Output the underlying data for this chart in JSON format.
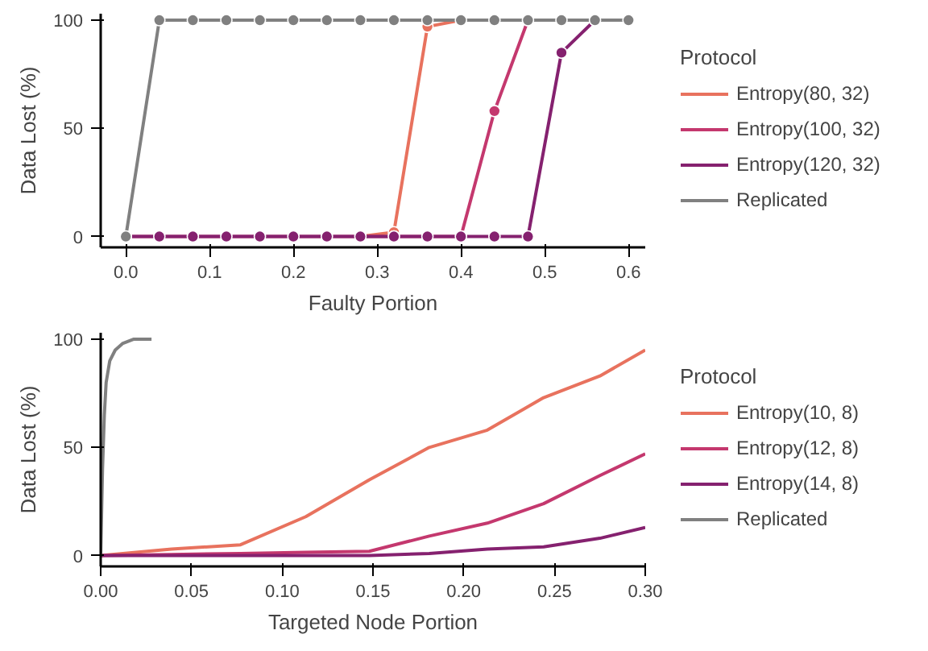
{
  "chart_data": [
    {
      "type": "line",
      "xlabel": "Faulty Portion",
      "ylabel": "Data Lost (%)",
      "legend_title": "Protocol",
      "legend": "right",
      "marker": "circle",
      "grid": false,
      "x": [
        0,
        0.04,
        0.08,
        0.12,
        0.16,
        0.2,
        0.24,
        0.28,
        0.32,
        0.36,
        0.4,
        0.44,
        0.48,
        0.52,
        0.56,
        0.6
      ],
      "xlim": [
        -0.03,
        0.62
      ],
      "xticks": [
        {
          "value": 0,
          "label": "0.0"
        },
        0.1,
        0.2,
        0.3,
        0.4,
        0.5,
        0.6
      ],
      "ylim": [
        -5,
        103
      ],
      "yticks": [
        0,
        50,
        100
      ],
      "series": [
        {
          "name": "Entropy(80, 32)",
          "color": "#e8725e",
          "values": [
            null,
            null,
            null,
            null,
            null,
            null,
            null,
            0,
            2,
            97,
            100,
            null,
            null,
            null,
            null,
            null
          ]
        },
        {
          "name": "Entropy(100, 32)",
          "color": "#c4386e",
          "values": [
            0,
            0,
            0,
            0,
            0,
            0,
            0,
            0,
            0,
            0,
            0,
            58,
            100,
            100,
            null,
            null
          ]
        },
        {
          "name": "Entropy(120, 32)",
          "color": "#85216f",
          "values": [
            0,
            0,
            0,
            0,
            0,
            0,
            0,
            0,
            0,
            0,
            0,
            0,
            0,
            85,
            100,
            100
          ]
        },
        {
          "name": "Replicated",
          "color": "#808080",
          "values": [
            0,
            100,
            100,
            100,
            100,
            100,
            100,
            100,
            100,
            100,
            100,
            100,
            100,
            100,
            100,
            100
          ]
        }
      ]
    },
    {
      "type": "line",
      "xlabel": "Targeted Node Portion",
      "ylabel": "Data Lost (%)",
      "legend_title": "Protocol",
      "legend": "right",
      "grid": false,
      "xlim": [
        0,
        0.3
      ],
      "xticks": [
        {
          "value": 0,
          "label": "0.00"
        },
        0.05,
        {
          "value": 0.1,
          "label": "0.10"
        },
        0.15,
        {
          "value": 0.2,
          "label": "0.20"
        },
        0.25,
        {
          "value": 0.3,
          "label": "0.30"
        }
      ],
      "ylim": [
        -5,
        103
      ],
      "yticks": [
        0,
        50,
        100
      ],
      "series": [
        {
          "name": "Entropy(10, 8)",
          "color": "#e8725e",
          "x": [
            0,
            0.039,
            0.077,
            0.113,
            0.148,
            0.181,
            0.213,
            0.244,
            0.275,
            0.3
          ],
          "values": [
            0,
            3,
            5,
            18,
            35,
            50,
            58,
            73,
            83,
            95
          ]
        },
        {
          "name": "Entropy(12, 8)",
          "color": "#c4386e",
          "x": [
            0,
            0.039,
            0.077,
            0.113,
            0.148,
            0.181,
            0.213,
            0.244,
            0.275,
            0.3
          ],
          "values": [
            0,
            0.5,
            1,
            1.5,
            2,
            9,
            15,
            24,
            37,
            47
          ]
        },
        {
          "name": "Entropy(14, 8)",
          "color": "#85216f",
          "x": [
            0,
            0.039,
            0.077,
            0.113,
            0.148,
            0.181,
            0.213,
            0.244,
            0.275,
            0.3
          ],
          "values": [
            0,
            0,
            0,
            0,
            0,
            1,
            3,
            4,
            8,
            13
          ]
        },
        {
          "name": "Replicated",
          "color": "#808080",
          "x": [
            0,
            0.001,
            0.002,
            0.003,
            0.005,
            0.008,
            0.012,
            0.018,
            0.028
          ],
          "values": [
            0,
            40,
            65,
            80,
            90,
            95,
            98,
            100,
            100
          ]
        }
      ]
    }
  ]
}
